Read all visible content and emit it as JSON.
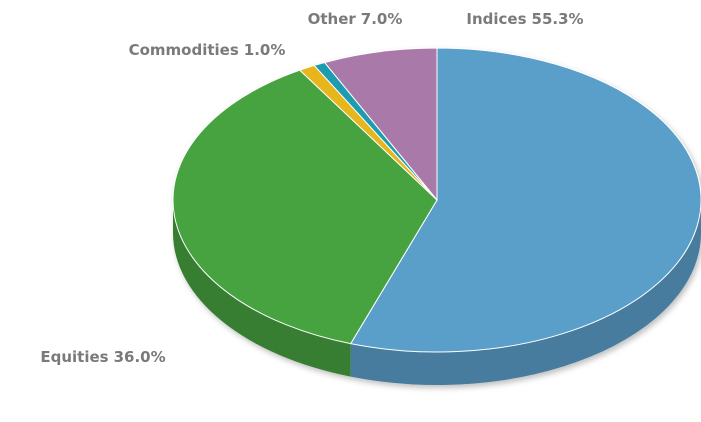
{
  "chart_data": {
    "type": "pie3d",
    "categories": [
      "Indices",
      "Equities",
      "Commodities",
      null,
      "Other"
    ],
    "values": [
      55.3,
      36.0,
      1.0,
      0.7,
      7.0
    ],
    "value_labels": [
      "55.3%",
      "36.0%",
      "1.0%",
      null,
      "7.0%"
    ],
    "colors": [
      "#5a9fca",
      "#46a241",
      "#e6b61c",
      "#1c9cae",
      "#a97aa9"
    ]
  }
}
